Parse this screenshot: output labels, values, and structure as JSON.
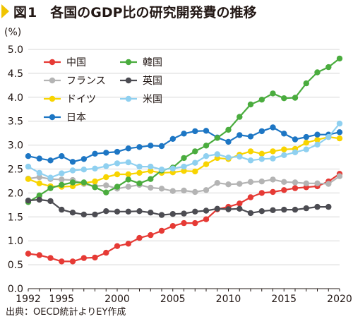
{
  "header": {
    "figure_label": "図1",
    "title": "各国のGDP比の研究開発費の推移"
  },
  "source": "出典：OECD統計よりEY作成",
  "chart_data": {
    "type": "line",
    "title": "各国のGDP比の研究開発費の推移",
    "ylabel": "(%)",
    "xlabel": "",
    "ylim": [
      0,
      5
    ],
    "xlim": [
      1992,
      2020
    ],
    "y_ticks": [
      "0.0",
      "0.5",
      "1.0",
      "1.5",
      "2.0",
      "2.5",
      "3.0",
      "3.5",
      "4.0",
      "4.5",
      "5.0"
    ],
    "x_ticks": [
      "1992",
      "1995",
      "2000",
      "2005",
      "2010",
      "2015",
      "2020"
    ],
    "grid": "horizontal",
    "legend_position": "top-left",
    "x": [
      1992,
      1993,
      1994,
      1995,
      1996,
      1997,
      1998,
      1999,
      2000,
      2001,
      2002,
      2003,
      2004,
      2005,
      2006,
      2007,
      2008,
      2009,
      2010,
      2011,
      2012,
      2013,
      2014,
      2015,
      2016,
      2017,
      2018,
      2019,
      2020
    ],
    "series": [
      {
        "name": "中国",
        "color": "#e63a35",
        "values": [
          0.73,
          0.7,
          0.64,
          0.57,
          0.57,
          0.64,
          0.65,
          0.75,
          0.89,
          0.94,
          1.06,
          1.12,
          1.21,
          1.31,
          1.37,
          1.37,
          1.45,
          1.66,
          1.71,
          1.78,
          1.91,
          2.0,
          2.02,
          2.06,
          2.1,
          2.12,
          2.14,
          2.24,
          2.4
        ]
      },
      {
        "name": "フランス",
        "color": "#b4b4b4",
        "values": [
          2.3,
          2.33,
          2.29,
          2.28,
          2.27,
          2.19,
          2.14,
          2.16,
          2.09,
          2.13,
          2.17,
          2.11,
          2.09,
          2.04,
          2.05,
          2.02,
          2.06,
          2.21,
          2.18,
          2.19,
          2.23,
          2.24,
          2.28,
          2.23,
          2.22,
          2.2,
          2.2,
          2.19,
          2.35
        ]
      },
      {
        "name": "ドイツ",
        "color": "#f8d400",
        "values": [
          2.29,
          2.2,
          2.14,
          2.13,
          2.14,
          2.21,
          2.24,
          2.33,
          2.39,
          2.39,
          2.42,
          2.46,
          2.42,
          2.43,
          2.46,
          2.45,
          2.6,
          2.73,
          2.71,
          2.8,
          2.87,
          2.82,
          2.87,
          2.91,
          2.92,
          3.05,
          3.11,
          3.17,
          3.14
        ]
      },
      {
        "name": "日本",
        "color": "#1d76c4",
        "values": [
          2.77,
          2.72,
          2.68,
          2.77,
          2.65,
          2.71,
          2.82,
          2.84,
          2.86,
          2.93,
          2.96,
          2.99,
          2.98,
          3.13,
          3.24,
          3.29,
          3.3,
          3.16,
          3.07,
          3.21,
          3.18,
          3.29,
          3.37,
          3.24,
          3.12,
          3.17,
          3.22,
          3.22,
          3.27
        ]
      },
      {
        "name": "韓国",
        "color": "#4aac3e",
        "values": [
          1.81,
          1.95,
          2.1,
          2.17,
          2.22,
          2.22,
          2.12,
          2.01,
          2.13,
          2.28,
          2.2,
          2.29,
          2.47,
          2.53,
          2.73,
          2.87,
          2.99,
          3.15,
          3.32,
          3.59,
          3.85,
          3.95,
          4.08,
          3.98,
          3.99,
          4.29,
          4.52,
          4.63,
          4.81
        ]
      },
      {
        "name": "英国",
        "color": "#4c4c52",
        "values": [
          1.84,
          1.86,
          1.83,
          1.65,
          1.59,
          1.55,
          1.55,
          1.62,
          1.61,
          1.61,
          1.62,
          1.59,
          1.54,
          1.56,
          1.57,
          1.61,
          1.63,
          1.67,
          1.66,
          1.67,
          1.58,
          1.62,
          1.64,
          1.65,
          1.65,
          1.68,
          1.71,
          1.71,
          null
        ]
      },
      {
        "name": "米国",
        "color": "#8fd0f0",
        "values": [
          2.55,
          2.42,
          2.32,
          2.41,
          2.47,
          2.49,
          2.51,
          2.56,
          2.62,
          2.64,
          2.55,
          2.55,
          2.49,
          2.51,
          2.55,
          2.63,
          2.77,
          2.81,
          2.74,
          2.76,
          2.68,
          2.71,
          2.72,
          2.79,
          2.85,
          2.91,
          3.01,
          3.17,
          3.45
        ]
      }
    ]
  }
}
